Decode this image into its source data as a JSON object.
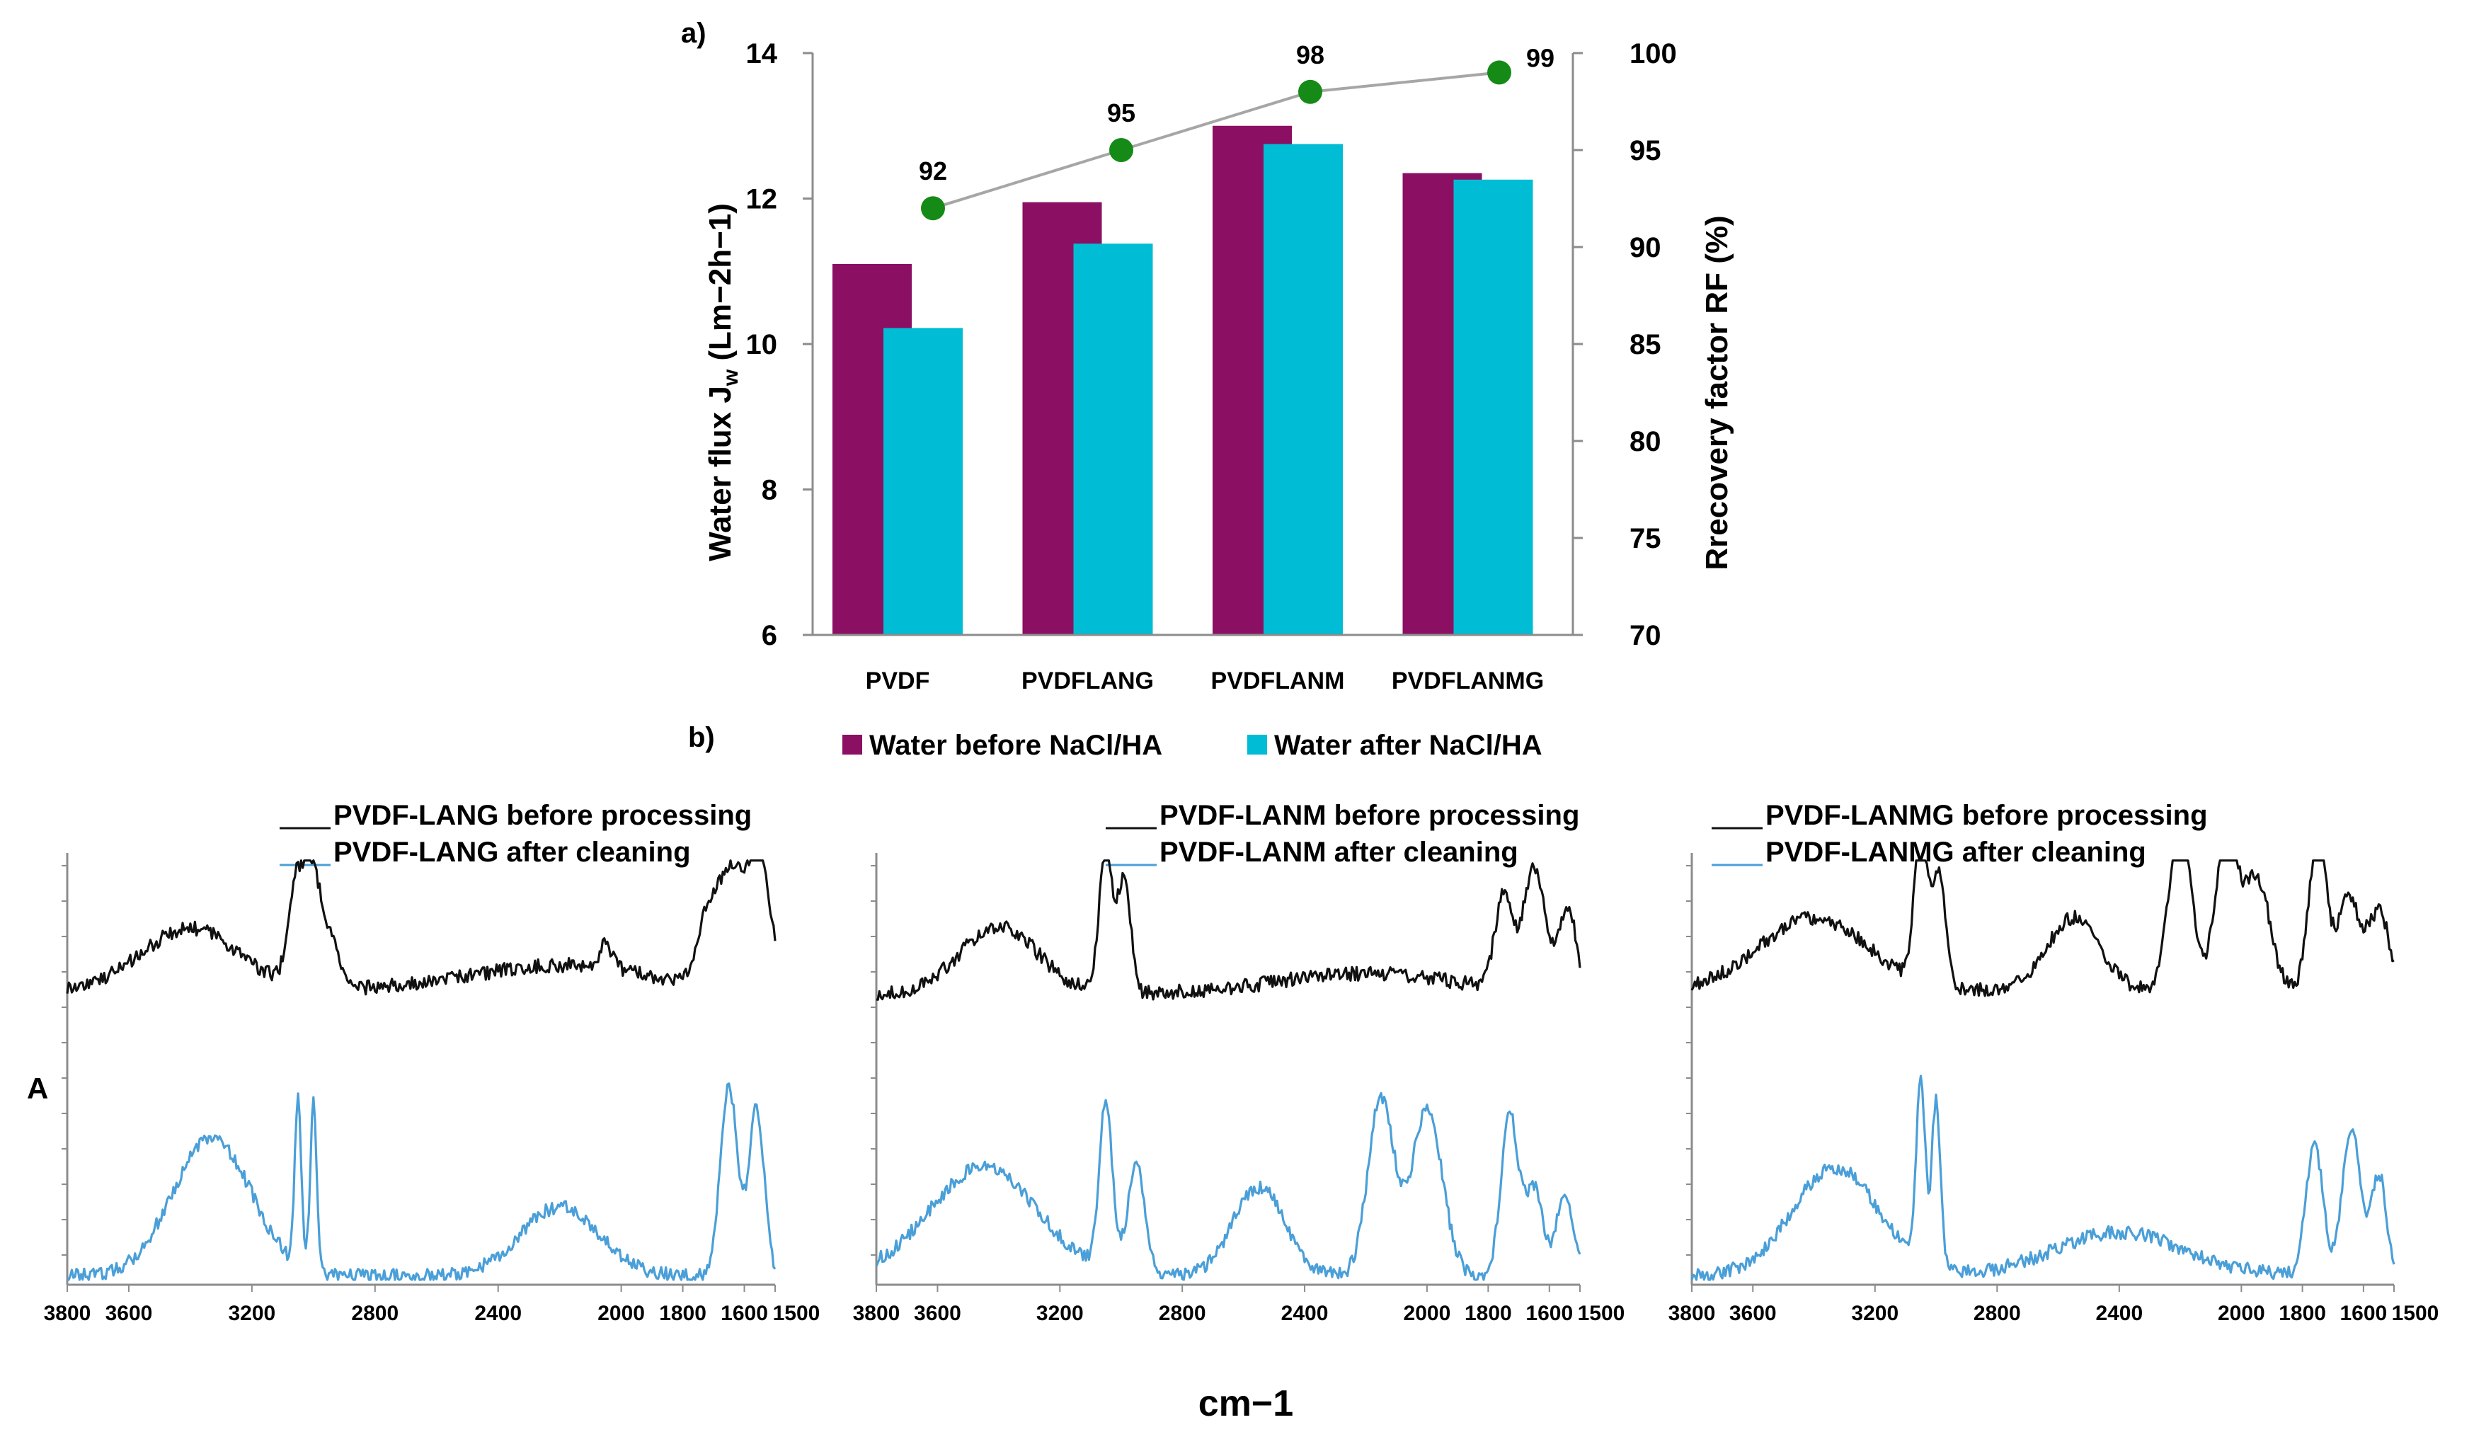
{
  "chart_data": [
    {
      "type": "bar+line",
      "panel_label": "a)",
      "categories": [
        "PVDF",
        "PVDFLANG",
        "PVDFLANM",
        "PVDFLANMG"
      ],
      "series": [
        {
          "name": "Water before NaCl/HA",
          "axis": "left",
          "values": [
            11.1,
            11.95,
            13.0,
            12.35
          ],
          "color": "#8b0f62"
        },
        {
          "name": "Water after NaCl/HA",
          "axis": "left",
          "values": [
            10.22,
            11.38,
            12.75,
            12.26
          ],
          "color": "#00bcd4"
        },
        {
          "name": "Recovery factor",
          "axis": "right",
          "type": "line",
          "values": [
            92,
            95,
            98,
            99
          ],
          "point_color": "#168a16",
          "line_color": "#a6a6a6"
        }
      ],
      "point_labels": [
        "92",
        "95",
        "98",
        "99"
      ],
      "y_left": {
        "label_main": "Water flux J",
        "label_sub": "w",
        "label_tail": " (Lm−2h−1)",
        "lim": [
          6,
          14
        ],
        "ticks": [
          6,
          8,
          10,
          12,
          14
        ],
        "tick_labels": [
          "6",
          "8",
          "10",
          "12",
          "14"
        ]
      },
      "y_right": {
        "label": "Rrecovery factor RF (%)",
        "lim": [
          70,
          100
        ],
        "ticks": [
          70,
          75,
          80,
          85,
          90,
          95,
          100
        ],
        "tick_labels": [
          "70",
          "75",
          "80",
          "85",
          "90",
          "95",
          "100"
        ]
      },
      "legend": {
        "placement": "bottom",
        "entries": [
          "Water before NaCl/HA",
          "Water after NaCl/HA"
        ]
      }
    },
    {
      "type": "line",
      "panel_label": "b)",
      "y_label": "A",
      "x_label": "cm−1",
      "x_range": [
        3800,
        1500
      ],
      "x_ticks": [
        3800,
        3600,
        3200,
        2800,
        2400,
        2000,
        1800,
        1600,
        1500
      ],
      "x_tick_labels": [
        "3800",
        "3600",
        "3200",
        "2800",
        "2400",
        "2000",
        "1800",
        "1600",
        "1500"
      ],
      "panels": [
        {
          "legend": [
            "PVDF-LANG before processing",
            "PVDF-LANG after cleaning"
          ],
          "series": [
            {
              "name": "before processing",
              "color": "#111111",
              "base": 0.42,
              "components": [
                [
                  3400,
                  0.3,
                  220
                ],
                [
                  3050,
                  0.55,
                  40
                ],
                [
                  3000,
                  0.45,
                  30
                ],
                [
                  2950,
                  0.28,
                  40
                ],
                [
                  2200,
                  0.12,
                  400
                ],
                [
                  2050,
                  0.12,
                  30
                ],
                [
                  1720,
                  0.3,
                  50
                ],
                [
                  1640,
                  0.55,
                  60
                ],
                [
                  1550,
                  0.62,
                  50
                ]
              ]
            },
            {
              "name": "after cleaning",
              "color": "#4a9fd8",
              "base": 0.02,
              "components": [
                [
                  3330,
                  0.7,
                  180
                ],
                [
                  3050,
                  0.85,
                  15
                ],
                [
                  3000,
                  0.85,
                  15
                ],
                [
                  2200,
                  0.35,
                  180
                ],
                [
                  1650,
                  0.95,
                  40
                ],
                [
                  1560,
                  0.85,
                  35
                ]
              ]
            }
          ]
        },
        {
          "legend": [
            "PVDF-LANM before processing",
            "PVDF-LANM after cleaning"
          ],
          "series": [
            {
              "name": "before processing",
              "color": "#111111",
              "base": 0.4,
              "components": [
                [
                  3400,
                  0.33,
                  180
                ],
                [
                  3050,
                  0.7,
                  30
                ],
                [
                  2990,
                  0.55,
                  30
                ],
                [
                  2200,
                  0.1,
                  400
                ],
                [
                  1750,
                  0.45,
                  40
                ],
                [
                  1650,
                  0.6,
                  50
                ],
                [
                  1540,
                  0.42,
                  40
                ]
              ]
            },
            {
              "name": "after cleaning",
              "color": "#4a9fd8",
              "base": 0.02,
              "components": [
                [
                  3450,
                  0.55,
                  250
                ],
                [
                  3050,
                  0.85,
                  30
                ],
                [
                  2950,
                  0.55,
                  40
                ],
                [
                  2550,
                  0.45,
                  120
                ],
                [
                  2150,
                  0.9,
                  60
                ],
                [
                  2000,
                  0.85,
                  70
                ],
                [
                  1730,
                  0.82,
                  40
                ],
                [
                  1650,
                  0.45,
                  40
                ],
                [
                  1550,
                  0.4,
                  40
                ]
              ]
            }
          ]
        },
        {
          "legend": [
            "PVDF-LANMG before processing",
            "PVDF-LANMG after cleaning"
          ],
          "series": [
            {
              "name": "before processing",
              "color": "#111111",
              "base": 0.42,
              "components": [
                [
                  3400,
                  0.35,
                  250
                ],
                [
                  3050,
                  0.75,
                  30
                ],
                [
                  2990,
                  0.55,
                  30
                ],
                [
                  2550,
                  0.35,
                  120
                ],
                [
                  2200,
                  0.85,
                  50
                ],
                [
                  2050,
                  0.75,
                  50
                ],
                [
                  1950,
                  0.55,
                  60
                ],
                [
                  1750,
                  0.75,
                  40
                ],
                [
                  1650,
                  0.45,
                  50
                ],
                [
                  1550,
                  0.38,
                  50
                ]
              ]
            },
            {
              "name": "after cleaning",
              "color": "#4a9fd8",
              "base": 0.02,
              "components": [
                [
                  3330,
                  0.55,
                  200
                ],
                [
                  3050,
                  0.95,
                  20
                ],
                [
                  3000,
                  0.85,
                  20
                ],
                [
                  2400,
                  0.22,
                  300
                ],
                [
                  1760,
                  0.65,
                  40
                ],
                [
                  1640,
                  0.75,
                  40
                ],
                [
                  1550,
                  0.52,
                  35
                ]
              ]
            }
          ]
        }
      ]
    }
  ]
}
